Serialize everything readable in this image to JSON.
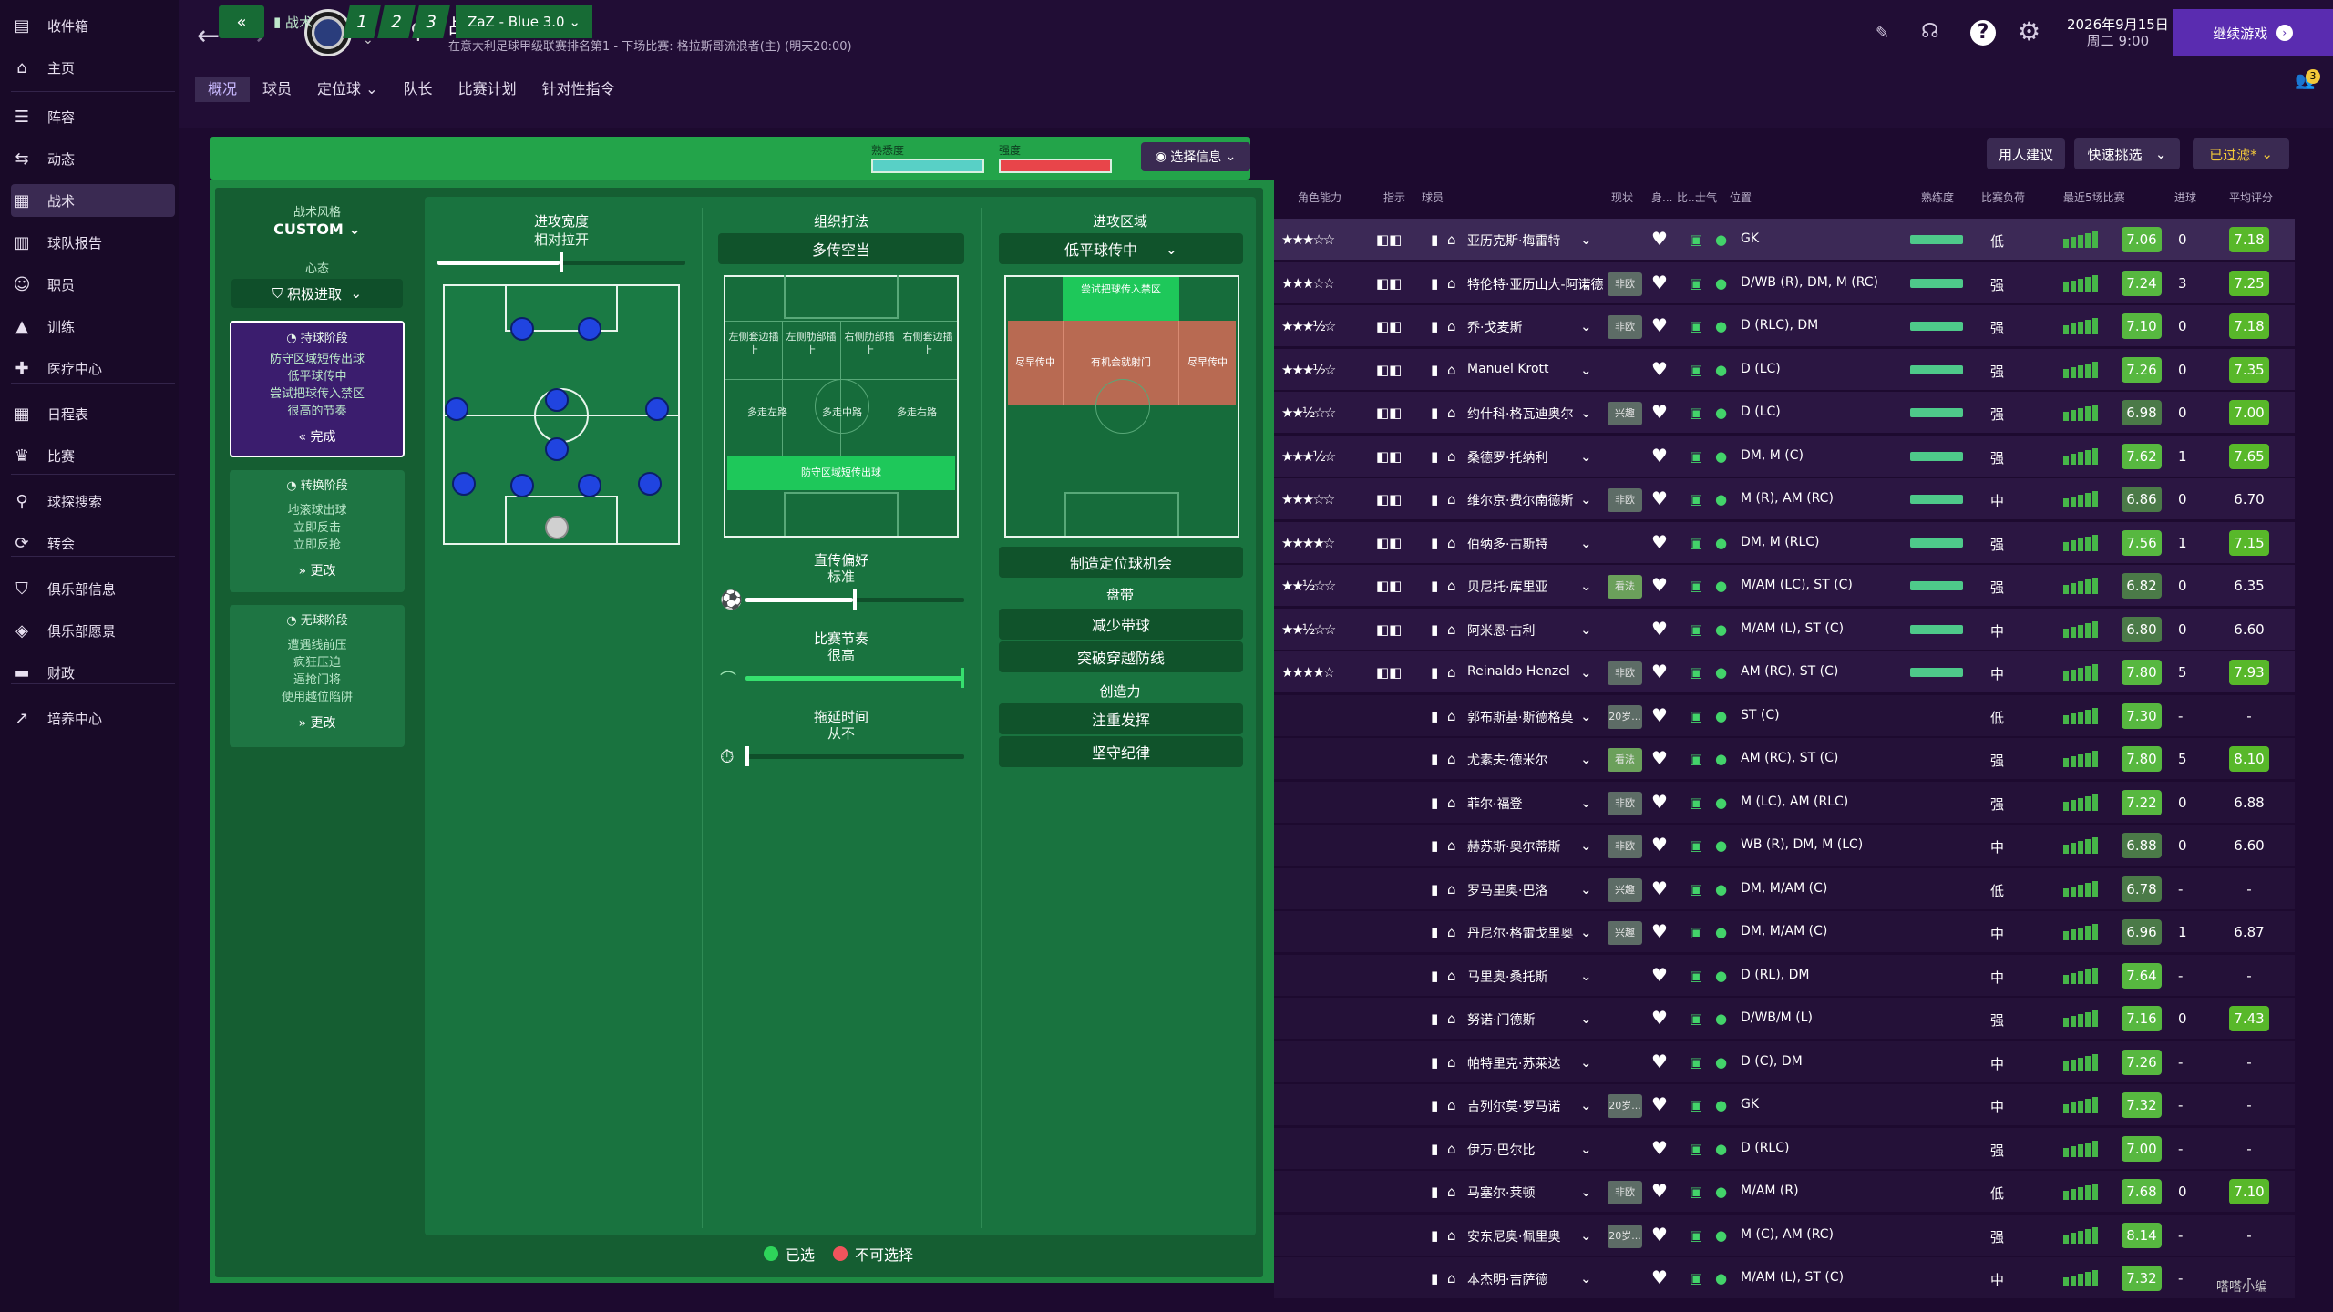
{
  "sidebar": {
    "items": [
      {
        "icon": "inbox-icon",
        "label": "收件箱"
      },
      {
        "icon": "home-icon",
        "label": "主页"
      },
      {
        "icon": "squad-icon",
        "label": "阵容"
      },
      {
        "icon": "dynamics-icon",
        "label": "动态"
      },
      {
        "icon": "tactics-icon",
        "label": "战术"
      },
      {
        "icon": "report-icon",
        "label": "球队报告"
      },
      {
        "icon": "staff-icon",
        "label": "职员"
      },
      {
        "icon": "training-icon",
        "label": "训练"
      },
      {
        "icon": "medical-icon",
        "label": "医疗中心"
      },
      {
        "icon": "calendar-icon",
        "label": "日程表"
      },
      {
        "icon": "trophy-icon",
        "label": "比赛"
      },
      {
        "icon": "scout-icon",
        "label": "球探搜索"
      },
      {
        "icon": "transfer-icon",
        "label": "转会"
      },
      {
        "icon": "club-info-icon",
        "label": "俱乐部信息"
      },
      {
        "icon": "vision-icon",
        "label": "俱乐部愿景"
      },
      {
        "icon": "finance-icon",
        "label": "财政"
      },
      {
        "icon": "development-icon",
        "label": "培养中心"
      }
    ]
  },
  "header": {
    "title": "战术",
    "subtitle": "在意大利足球甲级联赛排名第1 - 下场比赛: 格拉斯哥流浪者(主) (明天20:00)",
    "date": "2026年9月15日",
    "weekday": "周二 9:00",
    "continue": "继续游戏",
    "notif": "3"
  },
  "tabs": [
    "概况",
    "球员",
    "定位球",
    "队长",
    "比赛计划",
    "针对性指令"
  ],
  "tacticbar": {
    "label": "战术",
    "slot1": "1",
    "slot2": "2",
    "slot3": "3",
    "name": "ZaZ - Blue 3.0",
    "familiarity": "熟悉度",
    "intensity": "强度"
  },
  "info_btn": "选择信息",
  "left": {
    "style_label": "战术风格",
    "style_value": "CUSTOM",
    "mentality_label": "心态",
    "mentality_value": "积极进取",
    "inpos": {
      "title": "持球阶段",
      "lines": [
        "防守区域短传出球",
        "低平球传中",
        "尝试把球传入禁区",
        "很高的节奏"
      ],
      "action": "完成"
    },
    "trans": {
      "title": "转换阶段",
      "lines": [
        "地滚球出球",
        "立即反击",
        "立即反抢"
      ],
      "action": "更改"
    },
    "outpos": {
      "title": "无球阶段",
      "lines": [
        "遭遇线前压",
        "疯狂压迫",
        "逼抢门将",
        "使用越位陷阱"
      ],
      "action": "更改"
    }
  },
  "center": {
    "width_title": "进攻宽度",
    "width_value": "相对拉开",
    "build_title": "组织打法",
    "build_value": "多传空当",
    "zone_title": "进攻区域",
    "zone_value": "低平球传中",
    "zones": [
      "左侧套边插上",
      "左侧肋部插上",
      "右侧肋部插上",
      "右侧套边插上",
      "多走左路",
      "多走中路",
      "多走右路",
      "防守区域短传出球"
    ],
    "attack_zones": [
      "尝试把球传入禁区",
      "尽早传中",
      "有机会就射门",
      "尽早传中"
    ],
    "direct_title": "直传偏好",
    "direct_value": "标准",
    "tempo_title": "比赛节奏",
    "tempo_value": "很高",
    "time_title": "拖延时间",
    "time_value": "从不",
    "setpiece": "制造定位球机会",
    "dribble_title": "盘带",
    "dribble_value": "减少带球",
    "dribble2": "突破穿越防线",
    "creative_title": "创造力",
    "creative_value": "注重发挥",
    "creative2": "坚守纪律"
  },
  "legend": {
    "selected": "已选",
    "unavailable": "不可选择"
  },
  "right": {
    "btn1": "用人建议",
    "btn2": "快速挑选",
    "btn3": "已过滤*"
  },
  "columns": [
    "角色能力",
    "指示",
    "球员",
    "现状",
    "身...",
    "比...",
    "士气",
    "位置",
    "熟练度",
    "比赛负荷",
    "最近5场比赛",
    "进球",
    "平均评分"
  ],
  "players": [
    {
      "stars": "★★★☆☆",
      "name": "亚历克斯·梅雷特",
      "badge": "",
      "pos": "GK",
      "load": "低",
      "rating": "7.06",
      "goals": "0",
      "avg": "7.18"
    },
    {
      "stars": "★★★☆☆",
      "name": "特伦特·亚历山大-阿诺德",
      "badge": "非欧",
      "pos": "D/WB (R), DM, M (RC)",
      "load": "强",
      "rating": "7.24",
      "goals": "3",
      "avg": "7.25"
    },
    {
      "stars": "★★★½☆",
      "name": "乔·戈麦斯",
      "badge": "非欧",
      "pos": "D (RLC), DM",
      "load": "强",
      "rating": "7.10",
      "goals": "0",
      "avg": "7.18"
    },
    {
      "stars": "★★★½☆",
      "name": "Manuel Krott",
      "badge": "",
      "pos": "D (LC)",
      "load": "强",
      "rating": "7.26",
      "goals": "0",
      "avg": "7.35"
    },
    {
      "stars": "★★½☆☆",
      "name": "约什科·格瓦迪奥尔",
      "badge": "兴趣",
      "pos": "D (LC)",
      "load": "强",
      "rating": "6.98",
      "goals": "0",
      "avg": "7.00"
    },
    {
      "stars": "★★★½☆",
      "name": "桑德罗·托纳利",
      "badge": "",
      "pos": "DM, M (C)",
      "load": "强",
      "rating": "7.62",
      "goals": "1",
      "avg": "7.65"
    },
    {
      "stars": "★★★☆☆",
      "name": "维尔京·费尔南德斯",
      "badge": "非欧",
      "pos": "M (R), AM (RC)",
      "load": "中",
      "rating": "6.86",
      "goals": "0",
      "avg": "6.70"
    },
    {
      "stars": "★★★★☆",
      "name": "伯纳多·古斯特",
      "badge": "",
      "pos": "DM, M (RLC)",
      "load": "强",
      "rating": "7.56",
      "goals": "1",
      "avg": "7.15"
    },
    {
      "stars": "★★½☆☆",
      "name": "贝尼托·库里亚",
      "badge": "看法",
      "pos": "M/AM (LC), ST (C)",
      "load": "强",
      "rating": "6.82",
      "goals": "0",
      "avg": "6.35"
    },
    {
      "stars": "★★½☆☆",
      "name": "阿米恩·古利",
      "badge": "",
      "pos": "M/AM (L), ST (C)",
      "load": "中",
      "rating": "6.80",
      "goals": "0",
      "avg": "6.60"
    },
    {
      "stars": "★★★★☆",
      "name": "Reinaldo Henzel",
      "badge": "非欧",
      "pos": "AM (RC), ST (C)",
      "load": "中",
      "rating": "7.80",
      "goals": "5",
      "avg": "7.93"
    },
    {
      "stars": "",
      "name": "郭布斯基·斯德格莫",
      "badge": "20岁...",
      "pos": "ST (C)",
      "load": "低",
      "rating": "7.30",
      "goals": "-",
      "avg": "-"
    },
    {
      "stars": "",
      "name": "尤素夫·德米尔",
      "badge": "看法",
      "pos": "AM (RC), ST (C)",
      "load": "强",
      "rating": "7.80",
      "goals": "5",
      "avg": "8.10"
    },
    {
      "stars": "",
      "name": "菲尔·福登",
      "badge": "非欧",
      "pos": "M (LC), AM (RLC)",
      "load": "强",
      "rating": "7.22",
      "goals": "0",
      "avg": "6.88"
    },
    {
      "stars": "",
      "name": "赫苏斯·奥尔蒂斯",
      "badge": "非欧",
      "pos": "WB (R), DM, M (LC)",
      "load": "中",
      "rating": "6.88",
      "goals": "0",
      "avg": "6.60"
    },
    {
      "stars": "",
      "name": "罗马里奥·巴洛",
      "badge": "兴趣",
      "pos": "DM, M/AM (C)",
      "load": "低",
      "rating": "6.78",
      "goals": "-",
      "avg": "-"
    },
    {
      "stars": "",
      "name": "丹尼尔·格雷戈里奥",
      "badge": "兴趣",
      "pos": "DM, M/AM (C)",
      "load": "中",
      "rating": "6.96",
      "goals": "1",
      "avg": "6.87"
    },
    {
      "stars": "",
      "name": "马里奥·桑托斯",
      "badge": "",
      "pos": "D (RL), DM",
      "load": "中",
      "rating": "7.64",
      "goals": "-",
      "avg": "-"
    },
    {
      "stars": "",
      "name": "努诺·门德斯",
      "badge": "",
      "pos": "D/WB/M (L)",
      "load": "强",
      "rating": "7.16",
      "goals": "0",
      "avg": "7.43"
    },
    {
      "stars": "",
      "name": "帕特里克·苏莱达",
      "badge": "",
      "pos": "D (C), DM",
      "load": "中",
      "rating": "7.26",
      "goals": "-",
      "avg": "-"
    },
    {
      "stars": "",
      "name": "吉列尔莫·罗马诺",
      "badge": "20岁...",
      "pos": "GK",
      "load": "中",
      "rating": "7.32",
      "goals": "-",
      "avg": "-"
    },
    {
      "stars": "",
      "name": "伊万·巴尔比",
      "badge": "",
      "pos": "D (RLC)",
      "load": "强",
      "rating": "7.00",
      "goals": "-",
      "avg": "-"
    },
    {
      "stars": "",
      "name": "马塞尔·莱顿",
      "badge": "非欧",
      "pos": "M/AM (R)",
      "load": "低",
      "rating": "7.68",
      "goals": "0",
      "avg": "7.10"
    },
    {
      "stars": "",
      "name": "安东尼奥·佩里奥",
      "badge": "20岁...",
      "pos": "M (C), AM (RC)",
      "load": "强",
      "rating": "8.14",
      "goals": "-",
      "avg": "-"
    },
    {
      "stars": "",
      "name": "本杰明·吉萨德",
      "badge": "",
      "pos": "M/AM (L), ST (C)",
      "load": "中",
      "rating": "7.32",
      "goals": "-",
      "avg": "-"
    }
  ],
  "watermark": "嗒嗒小编"
}
